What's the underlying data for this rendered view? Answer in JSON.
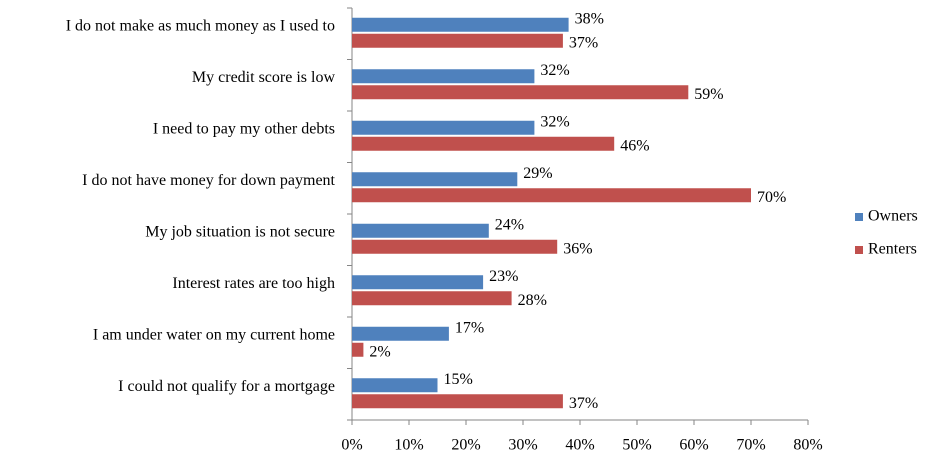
{
  "chart_data": {
    "type": "bar",
    "orientation": "horizontal",
    "categories": [
      "I do not make as much money as I used to",
      "My credit score is low",
      "I need to pay my other debts",
      "I do not have money for down payment",
      "My job situation is  not secure",
      "Interest rates are too high",
      "I am under water on my current home",
      "I could not qualify for a mortgage"
    ],
    "series": [
      {
        "name": "Owners",
        "color": "#4f81bd",
        "values": [
          38,
          32,
          32,
          29,
          24,
          23,
          17,
          15
        ],
        "value_labels": [
          "38%",
          "32%",
          "32%",
          "29%",
          "24%",
          "23%",
          "17%",
          "15%"
        ]
      },
      {
        "name": "Renters",
        "color": "#c0504d",
        "values": [
          37,
          59,
          46,
          70,
          36,
          28,
          2,
          37
        ],
        "value_labels": [
          "37%",
          "59%",
          "46%",
          "70%",
          "36%",
          "28%",
          "2%",
          "37%"
        ]
      }
    ],
    "xlim": [
      0,
      80
    ],
    "xticks": [
      {
        "value": 0,
        "label": "0%"
      },
      {
        "value": 10,
        "label": "10%"
      },
      {
        "value": 20,
        "label": "20%"
      },
      {
        "value": 30,
        "label": "30%"
      },
      {
        "value": 40,
        "label": "40%"
      },
      {
        "value": 50,
        "label": "50%"
      },
      {
        "value": 60,
        "label": "60%"
      },
      {
        "value": 70,
        "label": "70%"
      },
      {
        "value": 80,
        "label": "80%"
      }
    ],
    "legend": "right"
  }
}
